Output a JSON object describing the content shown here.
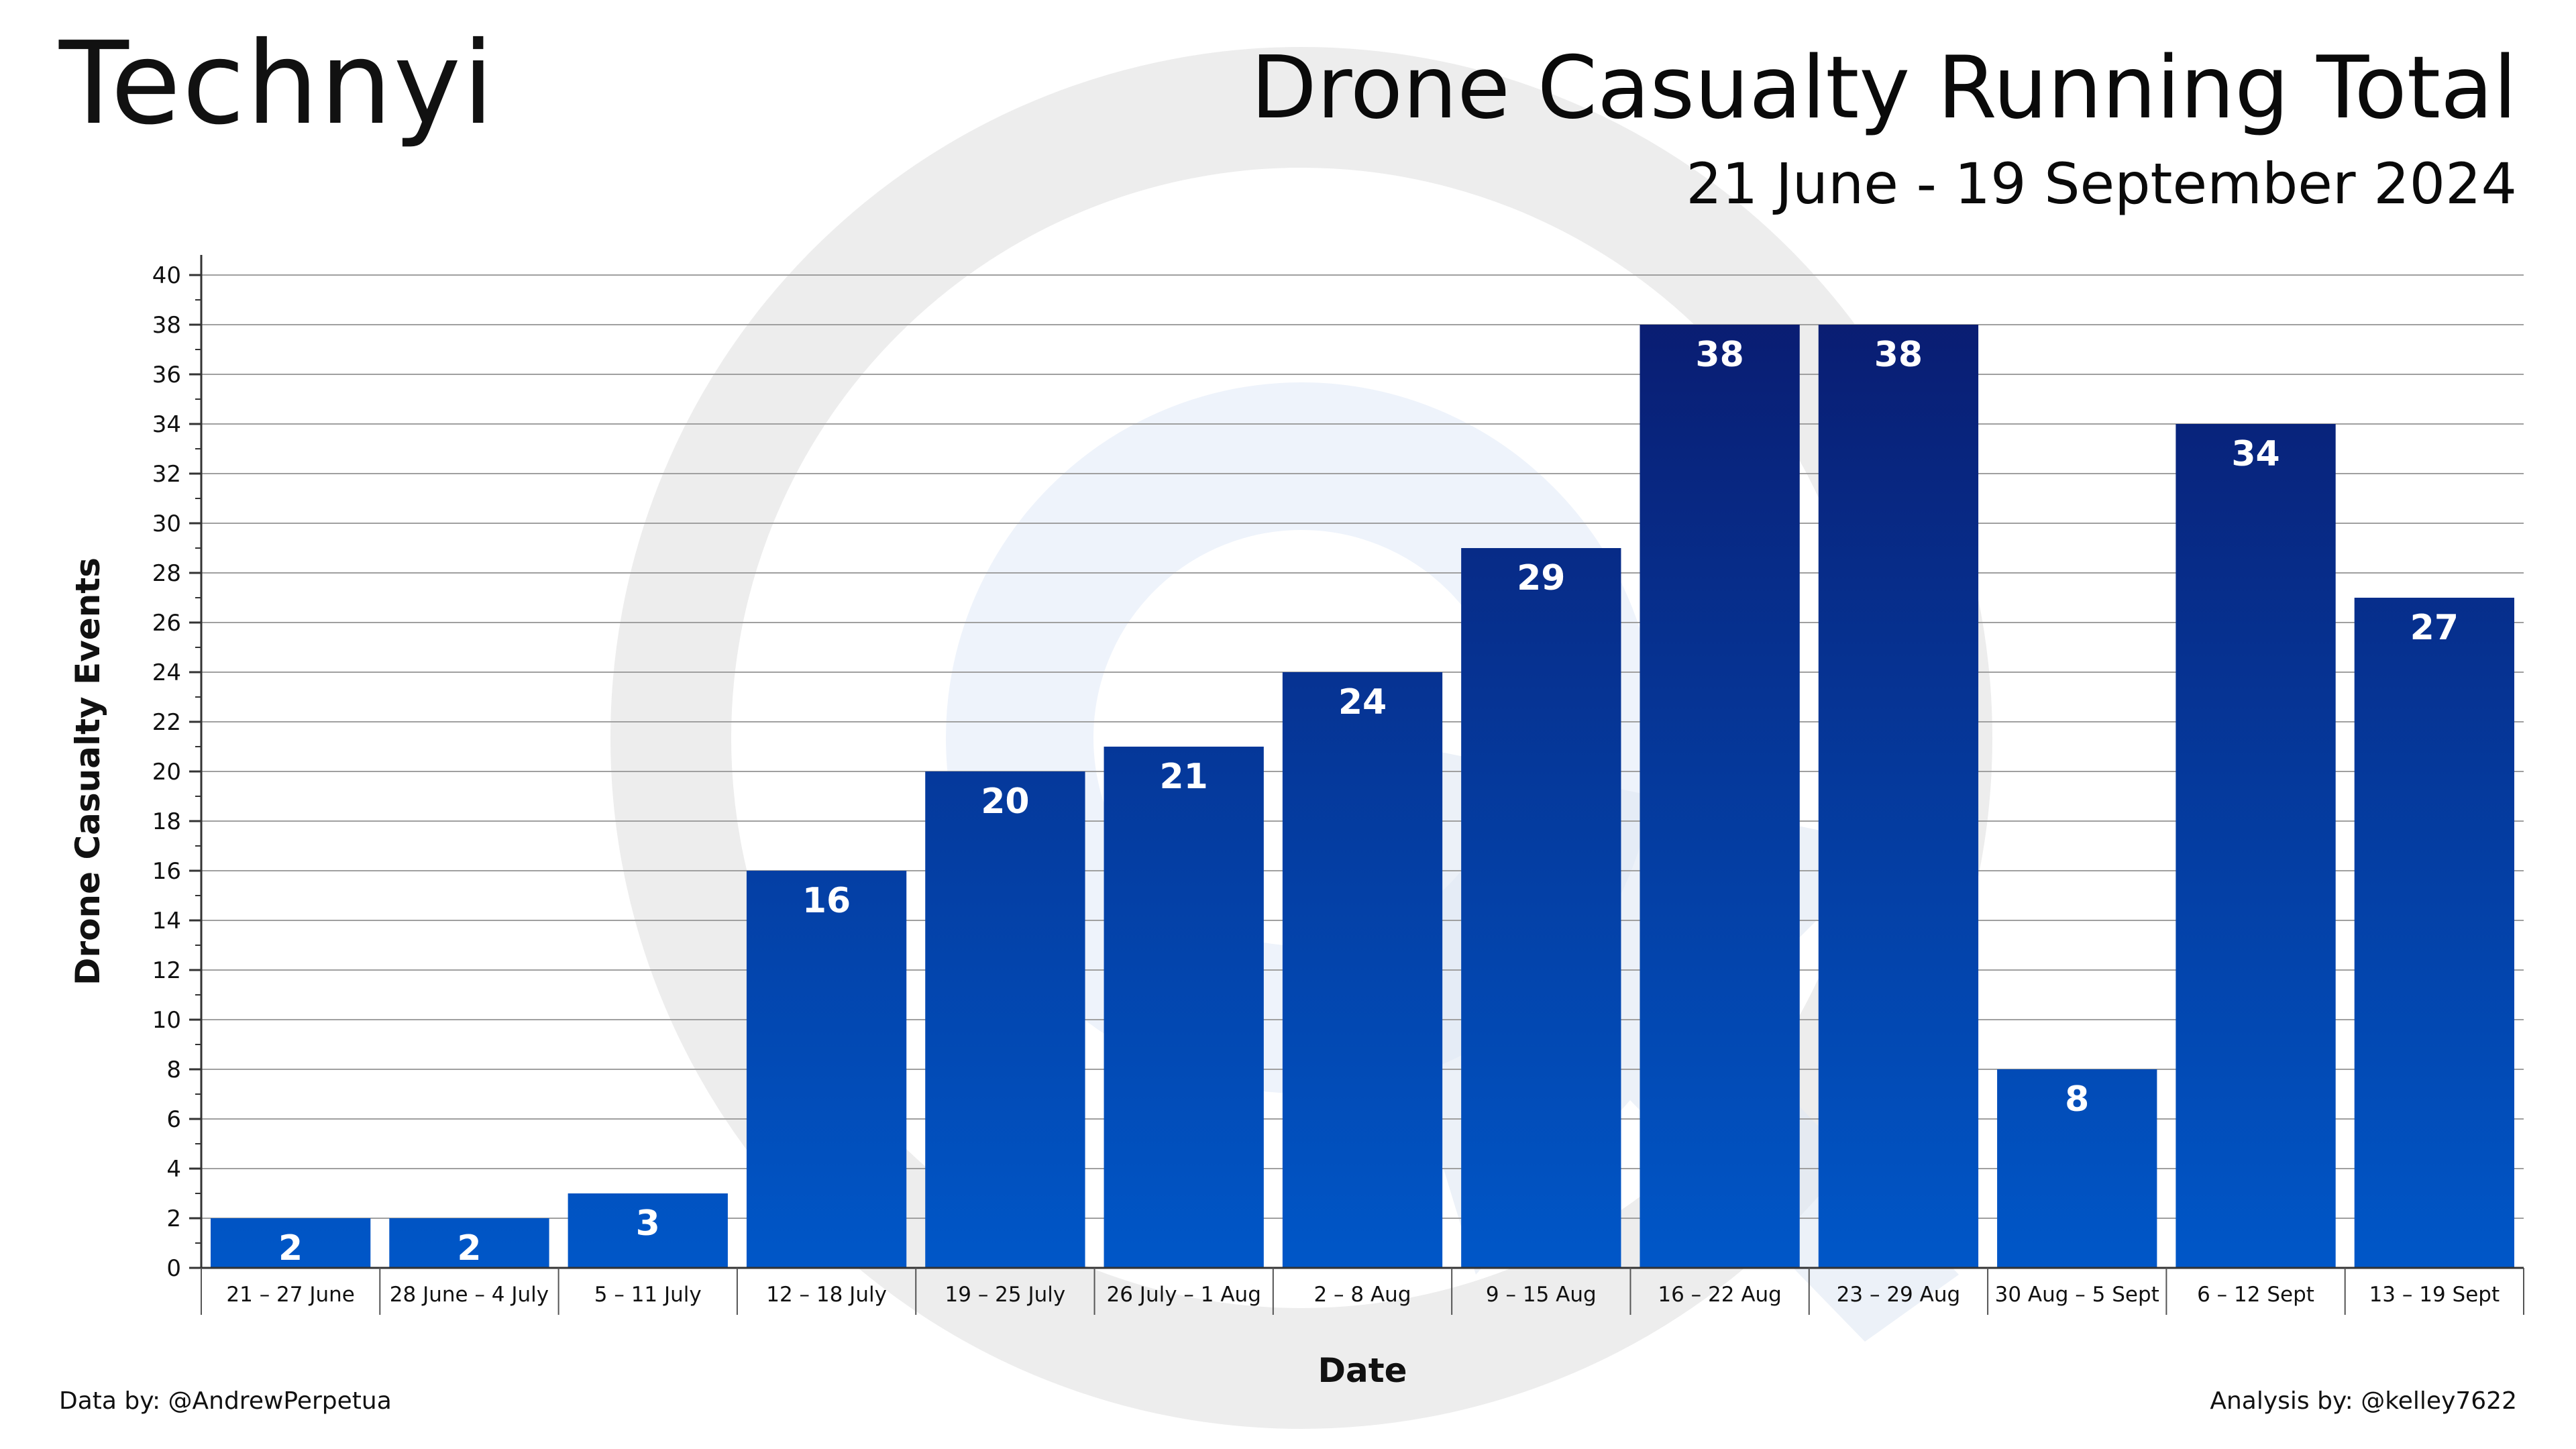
{
  "logo": {
    "text": "Technyi"
  },
  "footer": {
    "data_by": "Data by: @AndrewPerpetua",
    "analysis_by": "Analysis by: @kelley7622"
  },
  "colors": {
    "bar_top": "#0a1a6e",
    "bar_bottom": "#0057c8",
    "label": "#ffffff",
    "grid": "#9a9a9a",
    "watermark": "#ebebeb"
  },
  "chart_data": {
    "type": "bar",
    "title": "Drone Casualty Running Total",
    "subtitle": "21 June - 19 September 2024",
    "xlabel": "Date",
    "ylabel": "Drone Casualty Events",
    "ylim": [
      0,
      40
    ],
    "y_ticks": [
      0,
      2,
      4,
      6,
      8,
      10,
      12,
      14,
      16,
      18,
      20,
      22,
      24,
      26,
      28,
      30,
      32,
      34,
      36,
      38,
      40
    ],
    "grid": true,
    "categories": [
      "21 – 27 June",
      "28 June – 4 July",
      "5 – 11 July",
      "12 – 18 July",
      "19 – 25 July",
      "26 July – 1 Aug",
      "2 – 8 Aug",
      "9 – 15 Aug",
      "16 – 22 Aug",
      "23 – 29 Aug",
      "30 Aug – 5 Sept",
      "6 – 12 Sept",
      "13 – 19 Sept"
    ],
    "values": [
      2,
      2,
      3,
      16,
      20,
      21,
      24,
      29,
      38,
      38,
      8,
      34,
      27
    ],
    "data_labels": true
  }
}
